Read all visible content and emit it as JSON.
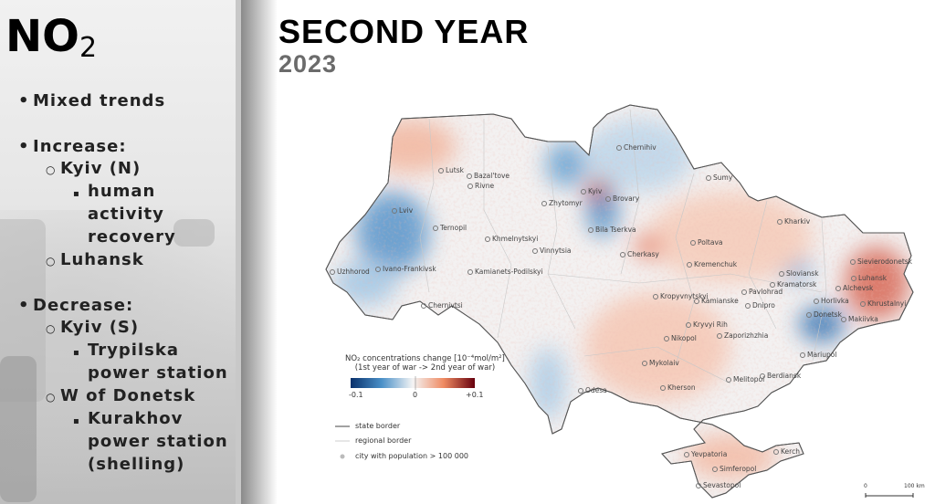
{
  "slide": {
    "title_main": "NO",
    "title_sub": "2",
    "heading": "SECOND YEAR",
    "year": "2023"
  },
  "bullets": [
    {
      "level": 1,
      "text": "Mixed trends"
    },
    {
      "level": 1,
      "text": "Increase:"
    },
    {
      "level": 2,
      "text": "Kyiv (N)"
    },
    {
      "level": 3,
      "text": "human"
    },
    {
      "level": 3,
      "text": "activity"
    },
    {
      "level": 3,
      "text": "recovery"
    },
    {
      "level": 2,
      "text": "Luhansk"
    },
    {
      "level": 1,
      "text": "Decrease:"
    },
    {
      "level": 2,
      "text": "Kyiv (S)"
    },
    {
      "level": 3,
      "text": "Trypilska"
    },
    {
      "level": 3,
      "text": "power station"
    },
    {
      "level": 2,
      "text": "W of Donetsk"
    },
    {
      "level": 3,
      "text": "Kurakhov"
    },
    {
      "level": 3,
      "text": "power station"
    },
    {
      "level": 3,
      "text": "(shelling)"
    }
  ],
  "map": {
    "cities": [
      "Lutsk",
      "Bazal'tove",
      "Rivne",
      "Lviv",
      "Ternopil",
      "Uzhhorod",
      "Ivano-Frankivsk",
      "Chernivtsi",
      "Kamianets-Podilskyi",
      "Khmelnytskyi",
      "Vinnytsia",
      "Zhytomyr",
      "Kyiv",
      "Brovary",
      "Bila Tserkva",
      "Chernihiv",
      "Sumy",
      "Kharkiv",
      "Poltava",
      "Cherkasy",
      "Kremenchuk",
      "Kropyvnytskyi",
      "Kamianske",
      "Dnipro",
      "Pavlohrad",
      "Sievierodonetsk",
      "Sloviansk",
      "Kramatorsk",
      "Alchevsk",
      "Luhansk",
      "Horlivka",
      "Khrustalnyi",
      "Donetsk",
      "Makiivka",
      "Kryvyi Rih",
      "Zaporizhzhia",
      "Nikopol",
      "Mariupol",
      "Mykolaiv",
      "Melitopol",
      "Berdiansk",
      "Kherson",
      "Odesa",
      "Yevpatoria",
      "Simferopol",
      "Sevastopol",
      "Kerch"
    ],
    "legend": {
      "title_line1": "NO₂ concentrations change [10⁻⁴mol/m²]",
      "title_line2": "(1st year of war -> 2nd year of war)",
      "min": "-0.1",
      "mid": "0",
      "max": "+0.1",
      "state_border": "state border",
      "regional_border": "regional border",
      "city": "city with population > 100 000",
      "scale_zero": "0",
      "scale_label": "100 km"
    },
    "colors": {
      "negative": "#08306b",
      "neutral": "#f4f4f4",
      "positive": "#67000d"
    }
  }
}
